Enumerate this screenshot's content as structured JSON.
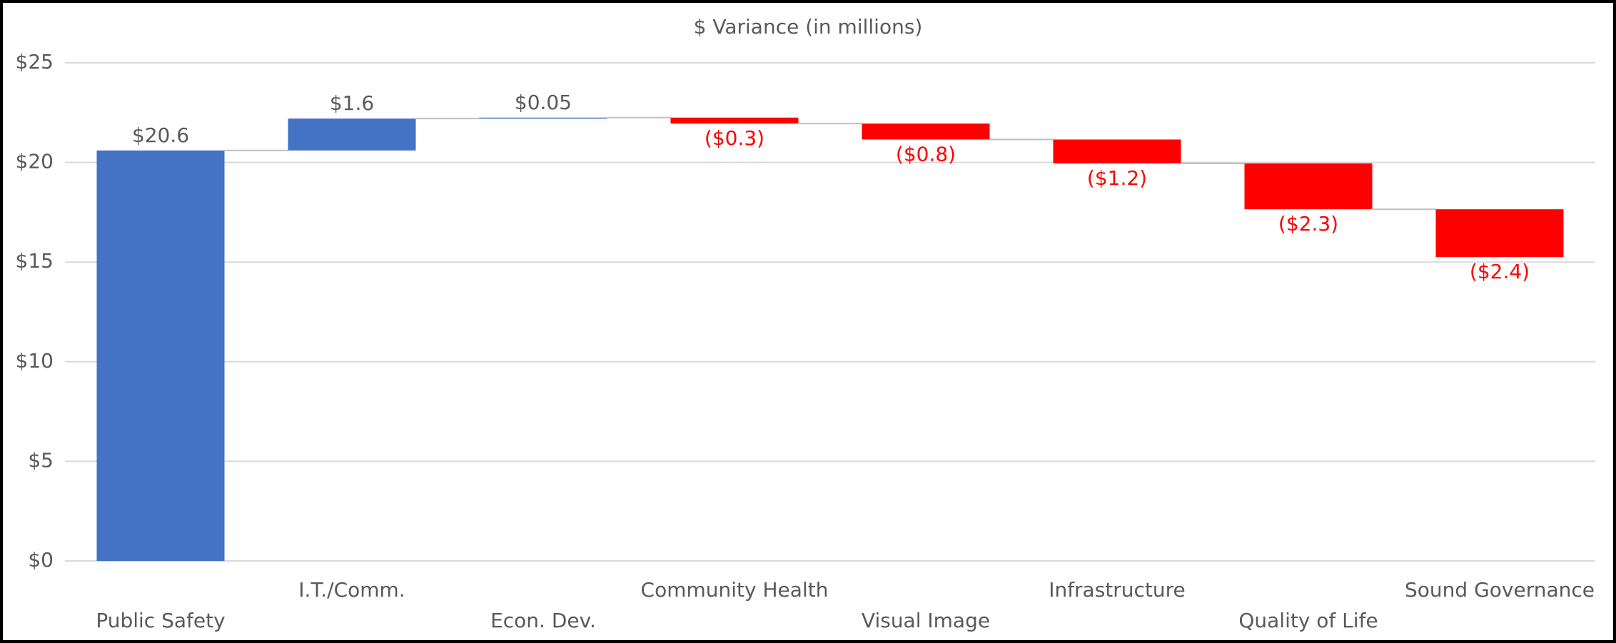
{
  "chart_data": {
    "type": "waterfall",
    "title": "$ Variance (in millions)",
    "categories": [
      "Public Safety",
      "I.T./Comm.",
      "Econ. Dev.",
      "Community Health",
      "Visual Image",
      "Infrastructure",
      "Quality of Life",
      "Sound Governance"
    ],
    "values": [
      20.6,
      1.6,
      0.05,
      -0.3,
      -0.8,
      -1.2,
      -2.3,
      -2.4
    ],
    "value_labels": [
      "$20.6",
      "$1.6",
      "$0.05",
      "($0.3)",
      "($0.8)",
      "($1.2)",
      "($2.3)",
      "($2.4)"
    ],
    "increase_color": "#4472c4",
    "decrease_color": "#ff0000",
    "ylim": [
      0,
      25
    ],
    "yticks": [
      {
        "value": 0,
        "label": "$0"
      },
      {
        "value": 5,
        "label": "$5"
      },
      {
        "value": 10,
        "label": "$10"
      },
      {
        "value": 15,
        "label": "$15"
      },
      {
        "value": 20,
        "label": "$20"
      },
      {
        "value": 25,
        "label": "$25"
      }
    ],
    "grid": true
  }
}
